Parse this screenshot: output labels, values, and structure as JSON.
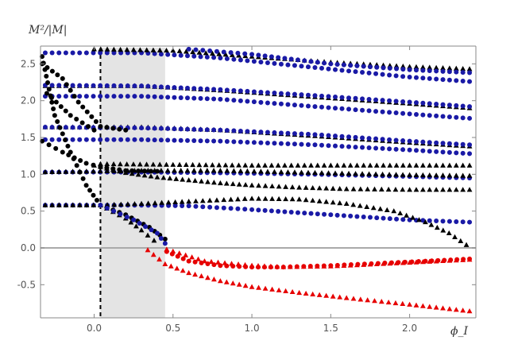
{
  "chart_data": {
    "type": "scatter",
    "title": "",
    "xlabel": "ϕ_I",
    "ylabel": "M²/|M|",
    "xlim": [
      -0.34,
      2.42
    ],
    "ylim": [
      -0.95,
      2.72
    ],
    "x_ticks": [
      0.0,
      0.5,
      1.0,
      1.5,
      2.0
    ],
    "x_tick_labels": [
      "0.0",
      "0.5",
      "1.0",
      "1.5",
      "2.0"
    ],
    "y_ticks": [
      -0.5,
      0.0,
      0.5,
      1.0,
      1.5,
      2.0,
      2.5
    ],
    "y_tick_labels": [
      "-0.5",
      "0.0",
      "0.5",
      "1.0",
      "1.5",
      "2.0",
      "2.5"
    ],
    "grid": false,
    "legend": "none",
    "shaded_region": {
      "x": [
        0.04,
        0.45
      ],
      "color": "#e4e4e4"
    },
    "reference_lines": [
      {
        "orientation": "vertical",
        "x": 0.04,
        "style": "dashed",
        "color": "#000000"
      },
      {
        "orientation": "horizontal",
        "y": 0.0,
        "style": "solid",
        "color": "#aaaaaa"
      }
    ],
    "colors": {
      "blue": "#1a1aa6",
      "black": "#000000",
      "red": "#e60000"
    },
    "series": [
      {
        "marker": "circle",
        "color": "#1a1aa6",
        "points": [
          [
            -0.31,
            0.58
          ],
          [
            0.04,
            0.58
          ],
          [
            0.3,
            0.58
          ],
          [
            0.6,
            0.57
          ],
          [
            1.0,
            0.52
          ],
          [
            1.5,
            0.45
          ],
          [
            2.0,
            0.38
          ],
          [
            2.38,
            0.35
          ]
        ]
      },
      {
        "marker": "triangle",
        "color": "#000000",
        "points": [
          [
            -0.31,
            0.58
          ],
          [
            0.04,
            0.58
          ],
          [
            0.3,
            0.6
          ],
          [
            0.6,
            0.63
          ],
          [
            1.0,
            0.67
          ],
          [
            1.3,
            0.66
          ],
          [
            1.6,
            0.6
          ],
          [
            1.9,
            0.5
          ],
          [
            2.1,
            0.35
          ],
          [
            2.25,
            0.2
          ],
          [
            2.36,
            0.04
          ]
        ]
      },
      {
        "marker": "circle",
        "color": "#1a1aa6",
        "points": [
          [
            -0.31,
            1.03
          ],
          [
            0.3,
            1.03
          ],
          [
            0.8,
            1.02
          ],
          [
            1.4,
            1.0
          ],
          [
            2.0,
            0.97
          ],
          [
            2.38,
            0.95
          ]
        ]
      },
      {
        "marker": "triangle",
        "color": "#000000",
        "points": [
          [
            -0.31,
            1.03
          ],
          [
            0.3,
            1.05
          ],
          [
            0.8,
            1.05
          ],
          [
            1.4,
            1.02
          ],
          [
            2.0,
            0.99
          ],
          [
            2.38,
            0.98
          ]
        ]
      },
      {
        "marker": "triangle",
        "color": "#000000",
        "points": [
          [
            0.04,
            1.14
          ],
          [
            0.5,
            1.13
          ],
          [
            1.0,
            1.12
          ],
          [
            1.5,
            1.12
          ],
          [
            2.0,
            1.12
          ],
          [
            2.38,
            1.12
          ]
        ]
      },
      {
        "marker": "triangle",
        "color": "#000000",
        "points": [
          [
            0.0,
            1.12
          ],
          [
            0.2,
            1.02
          ],
          [
            0.4,
            0.96
          ],
          [
            0.6,
            0.92
          ],
          [
            0.8,
            0.88
          ],
          [
            1.0,
            0.85
          ],
          [
            1.3,
            0.82
          ],
          [
            1.6,
            0.8
          ],
          [
            2.0,
            0.79
          ],
          [
            2.38,
            0.79
          ]
        ]
      },
      {
        "marker": "circle",
        "color": "#1a1aa6",
        "points": [
          [
            -0.31,
            1.47
          ],
          [
            0.3,
            1.47
          ],
          [
            0.8,
            1.45
          ],
          [
            1.4,
            1.4
          ],
          [
            2.0,
            1.33
          ],
          [
            2.38,
            1.28
          ]
        ]
      },
      {
        "marker": "triangle",
        "color": "#000000",
        "points": [
          [
            -0.31,
            1.64
          ],
          [
            0.3,
            1.64
          ],
          [
            0.8,
            1.6
          ],
          [
            1.4,
            1.52
          ],
          [
            2.0,
            1.43
          ],
          [
            2.38,
            1.38
          ]
        ]
      },
      {
        "marker": "circle",
        "color": "#1a1aa6",
        "points": [
          [
            -0.31,
            1.64
          ],
          [
            0.3,
            1.63
          ],
          [
            0.8,
            1.6
          ],
          [
            1.4,
            1.54
          ],
          [
            2.0,
            1.45
          ],
          [
            2.38,
            1.4
          ]
        ]
      },
      {
        "marker": "circle",
        "color": "#1a1aa6",
        "points": [
          [
            -0.31,
            2.06
          ],
          [
            0.3,
            2.06
          ],
          [
            0.8,
            2.02
          ],
          [
            1.4,
            1.92
          ],
          [
            2.0,
            1.82
          ],
          [
            2.38,
            1.76
          ]
        ]
      },
      {
        "marker": "triangle",
        "color": "#000000",
        "points": [
          [
            -0.31,
            2.2
          ],
          [
            0.3,
            2.2
          ],
          [
            0.8,
            2.14
          ],
          [
            1.4,
            2.05
          ],
          [
            2.0,
            1.96
          ],
          [
            2.38,
            1.9
          ]
        ]
      },
      {
        "marker": "circle",
        "color": "#1a1aa6",
        "points": [
          [
            -0.31,
            2.21
          ],
          [
            0.3,
            2.2
          ],
          [
            0.8,
            2.15
          ],
          [
            1.4,
            2.07
          ],
          [
            2.0,
            1.98
          ],
          [
            2.38,
            1.92
          ]
        ]
      },
      {
        "marker": "circle",
        "color": "#1a1aa6",
        "points": [
          [
            -0.31,
            2.65
          ],
          [
            0.3,
            2.65
          ],
          [
            0.8,
            2.58
          ],
          [
            1.4,
            2.45
          ],
          [
            2.0,
            2.32
          ],
          [
            2.38,
            2.26
          ]
        ]
      },
      {
        "marker": "triangle",
        "color": "#000000",
        "points": [
          [
            0.0,
            2.7
          ],
          [
            0.5,
            2.68
          ],
          [
            1.0,
            2.6
          ],
          [
            1.5,
            2.52
          ],
          [
            2.0,
            2.46
          ],
          [
            2.38,
            2.43
          ]
        ]
      },
      {
        "marker": "circle",
        "color": "#1a1aa6",
        "points": [
          [
            0.6,
            2.7
          ],
          [
            1.0,
            2.63
          ],
          [
            1.5,
            2.5
          ],
          [
            2.0,
            2.42
          ],
          [
            2.38,
            2.38
          ]
        ]
      },
      {
        "marker": "circle",
        "color": "#000000",
        "points": [
          [
            -0.33,
            2.6
          ],
          [
            -0.25,
            1.8
          ],
          [
            -0.15,
            1.3
          ],
          [
            -0.05,
            0.85
          ],
          [
            0.04,
            0.58
          ],
          [
            0.2,
            0.45
          ],
          [
            0.35,
            0.28
          ],
          [
            0.45,
            0.12
          ]
        ]
      },
      {
        "marker": "circle",
        "color": "#000000",
        "points": [
          [
            -0.33,
            2.5
          ],
          [
            -0.2,
            2.3
          ],
          [
            -0.1,
            1.98
          ],
          [
            0.04,
            1.65
          ],
          [
            0.2,
            1.6
          ]
        ]
      },
      {
        "marker": "circle",
        "color": "#000000",
        "points": [
          [
            -0.3,
            2.1
          ],
          [
            -0.15,
            1.8
          ],
          [
            0.0,
            1.6
          ]
        ]
      },
      {
        "marker": "circle",
        "color": "#000000",
        "points": [
          [
            -0.33,
            1.45
          ],
          [
            -0.2,
            1.3
          ],
          [
            -0.05,
            1.15
          ],
          [
            0.04,
            1.1
          ],
          [
            0.2,
            1.05
          ],
          [
            0.4,
            1.04
          ]
        ]
      },
      {
        "marker": "triangle",
        "color": "#000000",
        "points": [
          [
            0.04,
            0.58
          ],
          [
            0.2,
            0.4
          ],
          [
            0.3,
            0.24
          ],
          [
            0.38,
            0.1
          ]
        ]
      },
      {
        "marker": "circle",
        "color": "#1a1aa6",
        "points": [
          [
            0.04,
            0.58
          ],
          [
            0.25,
            0.38
          ],
          [
            0.4,
            0.2
          ],
          [
            0.45,
            0.06
          ]
        ]
      },
      {
        "marker": "circle",
        "color": "#e60000",
        "points": [
          [
            0.46,
            -0.05
          ],
          [
            0.6,
            -0.18
          ],
          [
            0.8,
            -0.24
          ],
          [
            1.0,
            -0.26
          ],
          [
            1.2,
            -0.26
          ],
          [
            1.5,
            -0.24
          ],
          [
            1.8,
            -0.21
          ],
          [
            2.1,
            -0.18
          ],
          [
            2.38,
            -0.15
          ]
        ]
      },
      {
        "marker": "triangle",
        "color": "#e60000",
        "points": [
          [
            0.46,
            -0.02
          ],
          [
            0.7,
            -0.18
          ],
          [
            1.0,
            -0.24
          ],
          [
            1.2,
            -0.26
          ],
          [
            1.5,
            -0.25
          ],
          [
            2.0,
            -0.2
          ],
          [
            2.38,
            -0.16
          ]
        ]
      },
      {
        "marker": "triangle",
        "color": "#e60000",
        "points": [
          [
            0.34,
            -0.03
          ],
          [
            0.45,
            -0.22
          ],
          [
            0.6,
            -0.34
          ],
          [
            0.8,
            -0.45
          ],
          [
            1.0,
            -0.53
          ],
          [
            1.3,
            -0.61
          ],
          [
            1.6,
            -0.68
          ],
          [
            2.0,
            -0.77
          ],
          [
            2.38,
            -0.86
          ]
        ]
      }
    ]
  }
}
